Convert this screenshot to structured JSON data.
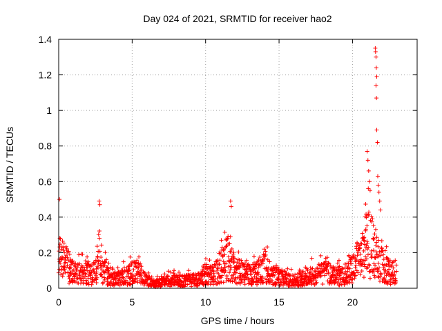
{
  "chart_data": {
    "type": "scatter",
    "title": "Day 024 of 2021, SRMTID for receiver hao2",
    "xlabel": "GPS time / hours",
    "ylabel": "SRMTID / TECUs",
    "xlim": [
      0,
      24.4
    ],
    "ylim": [
      0,
      1.4
    ],
    "xticks": [
      0,
      5,
      10,
      15,
      20
    ],
    "xtick_labels": [
      "0",
      "5",
      "10",
      "15",
      "20"
    ],
    "yticks": [
      0,
      0.2,
      0.4,
      0.6,
      0.8,
      1.0,
      1.2,
      1.4
    ],
    "ytick_labels": [
      "0",
      "0.2",
      "0.4",
      "0.6",
      "0.8",
      "1",
      "1.2",
      "1.4"
    ],
    "grid": true,
    "marker": "+",
    "series": [
      {
        "name": "SRMTID",
        "color": "#ff0000",
        "envelope_hours": [
          0,
          0.5,
          1,
          1.5,
          2,
          2.5,
          2.75,
          3,
          3.5,
          4,
          4.5,
          5,
          5.5,
          6,
          6.5,
          7,
          7.5,
          8,
          8.5,
          9,
          9.5,
          10,
          10.5,
          11,
          11.5,
          11.75,
          12,
          12.5,
          13,
          13.5,
          14,
          14.5,
          15,
          15.5,
          16,
          16.5,
          17,
          17.5,
          18,
          18.5,
          19,
          19.5,
          20,
          20.5,
          21,
          21.5,
          21.7,
          22,
          22.5,
          23
        ],
        "envelope_typical": [
          0.22,
          0.16,
          0.1,
          0.1,
          0.09,
          0.1,
          0.22,
          0.12,
          0.07,
          0.06,
          0.08,
          0.1,
          0.1,
          0.05,
          0.03,
          0.04,
          0.05,
          0.05,
          0.05,
          0.05,
          0.06,
          0.1,
          0.08,
          0.14,
          0.2,
          0.16,
          0.12,
          0.1,
          0.09,
          0.1,
          0.15,
          0.08,
          0.08,
          0.06,
          0.05,
          0.06,
          0.08,
          0.09,
          0.1,
          0.09,
          0.08,
          0.08,
          0.12,
          0.2,
          0.3,
          0.25,
          0.2,
          0.15,
          0.1,
          0.1
        ],
        "notable_points": [
          {
            "x": 0.05,
            "y": 0.5
          },
          {
            "x": 2.75,
            "y": 0.49
          },
          {
            "x": 2.8,
            "y": 0.47
          },
          {
            "x": 11.7,
            "y": 0.49
          },
          {
            "x": 11.75,
            "y": 0.46
          },
          {
            "x": 21.0,
            "y": 0.77
          },
          {
            "x": 21.05,
            "y": 0.72
          },
          {
            "x": 21.1,
            "y": 0.66
          },
          {
            "x": 21.15,
            "y": 0.6
          },
          {
            "x": 21.2,
            "y": 0.55
          },
          {
            "x": 21.55,
            "y": 1.35
          },
          {
            "x": 21.57,
            "y": 1.33
          },
          {
            "x": 21.6,
            "y": 1.3
          },
          {
            "x": 21.62,
            "y": 1.24
          },
          {
            "x": 21.65,
            "y": 1.19
          },
          {
            "x": 21.6,
            "y": 1.14
          },
          {
            "x": 21.63,
            "y": 1.07
          },
          {
            "x": 21.65,
            "y": 0.89
          },
          {
            "x": 21.7,
            "y": 0.82
          },
          {
            "x": 21.72,
            "y": 0.63
          },
          {
            "x": 21.75,
            "y": 0.58
          },
          {
            "x": 21.8,
            "y": 0.54
          },
          {
            "x": 21.85,
            "y": 0.49
          },
          {
            "x": 21.9,
            "y": 0.44
          }
        ]
      }
    ]
  }
}
